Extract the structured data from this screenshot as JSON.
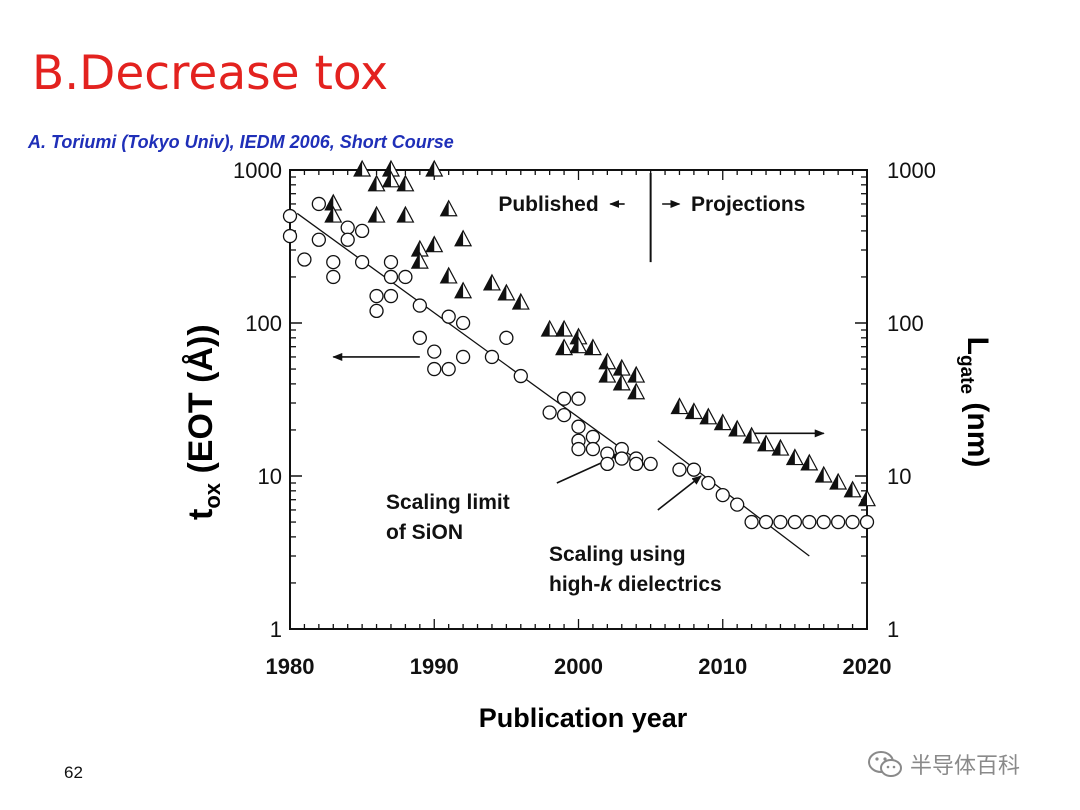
{
  "slide": {
    "title": "B.Decrease tox",
    "citation": "A. Toriumi (Tokyo Univ), IEDM 2006, Short Course",
    "page_number": "62",
    "watermark": "半导体百科",
    "watermark_icon": "wechat-icon"
  },
  "chart_data": {
    "type": "scatter",
    "xlabel": "Publication year",
    "ylabel_left": {
      "main": "t",
      "sub": "ox",
      "rest": " (EOT (Å))"
    },
    "ylabel_right": {
      "main": "L",
      "sub": "gate",
      "rest": " (nm)"
    },
    "xlim": [
      1980,
      2020
    ],
    "ylim": [
      1,
      1000
    ],
    "yscale": "log",
    "x_ticks": [
      "1980",
      "1990",
      "2000",
      "2010",
      "2020"
    ],
    "y_ticks_left": [
      "1000",
      "100",
      "10",
      "1"
    ],
    "y_ticks_right": [
      "1000",
      "100",
      "10",
      "1"
    ],
    "legend": "none",
    "grid": false,
    "divider_year": 2005,
    "annotations": {
      "published": "Published",
      "projections": "Projections",
      "sion_line1": "Scaling limit",
      "sion_line2": "of SiON",
      "highk_line1": "Scaling using",
      "highk_line2_pre": "high-",
      "highk_line2_k": "k",
      "highk_line2_post": " dielectrics"
    },
    "series": [
      {
        "marker": "circle",
        "axis": "left",
        "points": [
          [
            1980,
            500
          ],
          [
            1980,
            370
          ],
          [
            1981,
            260
          ],
          [
            1982,
            600
          ],
          [
            1982,
            350
          ],
          [
            1983,
            250
          ],
          [
            1983,
            200
          ],
          [
            1984,
            420
          ],
          [
            1984,
            350
          ],
          [
            1985,
            400
          ],
          [
            1985,
            250
          ],
          [
            1986,
            150
          ],
          [
            1986,
            120
          ],
          [
            1987,
            250
          ],
          [
            1987,
            200
          ],
          [
            1987,
            150
          ],
          [
            1988,
            200
          ],
          [
            1989,
            130
          ],
          [
            1989,
            80
          ],
          [
            1990,
            65
          ],
          [
            1990,
            50
          ],
          [
            1991,
            110
          ],
          [
            1991,
            50
          ],
          [
            1992,
            100
          ],
          [
            1992,
            60
          ],
          [
            1994,
            60
          ],
          [
            1995,
            80
          ],
          [
            1996,
            45
          ],
          [
            1998,
            26
          ],
          [
            1999,
            32
          ],
          [
            1999,
            25
          ],
          [
            2000,
            32
          ],
          [
            2000,
            21
          ],
          [
            2000,
            17
          ],
          [
            2000,
            15
          ],
          [
            2001,
            18
          ],
          [
            2001,
            15
          ],
          [
            2002,
            14
          ],
          [
            2002,
            12
          ],
          [
            2003,
            15
          ],
          [
            2003,
            13
          ],
          [
            2004,
            13
          ],
          [
            2004,
            12
          ],
          [
            2005,
            12
          ],
          [
            2007,
            11
          ],
          [
            2008,
            11
          ],
          [
            2009,
            9
          ],
          [
            2010,
            7.5
          ],
          [
            2011,
            6.5
          ],
          [
            2012,
            5
          ],
          [
            2013,
            5
          ],
          [
            2014,
            5
          ],
          [
            2015,
            5
          ],
          [
            2016,
            5
          ],
          [
            2017,
            5
          ],
          [
            2018,
            5
          ],
          [
            2019,
            5
          ],
          [
            2020,
            5
          ]
        ]
      },
      {
        "marker": "half-filled-triangle",
        "axis": "right",
        "points": [
          [
            1983,
            600
          ],
          [
            1983,
            500
          ],
          [
            1985,
            1000
          ],
          [
            1986,
            800
          ],
          [
            1986,
            500
          ],
          [
            1987,
            1000
          ],
          [
            1987,
            850
          ],
          [
            1988,
            800
          ],
          [
            1988,
            500
          ],
          [
            1990,
            1000
          ],
          [
            1989,
            300
          ],
          [
            1989,
            250
          ],
          [
            1990,
            320
          ],
          [
            1991,
            550
          ],
          [
            1991,
            200
          ],
          [
            1992,
            350
          ],
          [
            1992,
            160
          ],
          [
            1994,
            180
          ],
          [
            1995,
            155
          ],
          [
            1996,
            135
          ],
          [
            1998,
            90
          ],
          [
            1999,
            90
          ],
          [
            1999,
            68
          ],
          [
            2000,
            80
          ],
          [
            2000,
            70
          ],
          [
            2001,
            68
          ],
          [
            2002,
            55
          ],
          [
            2002,
            45
          ],
          [
            2003,
            50
          ],
          [
            2003,
            40
          ],
          [
            2004,
            45
          ],
          [
            2004,
            35
          ],
          [
            2007,
            28
          ],
          [
            2008,
            26
          ],
          [
            2009,
            24
          ],
          [
            2010,
            22
          ],
          [
            2011,
            20
          ],
          [
            2012,
            18
          ],
          [
            2013,
            16
          ],
          [
            2014,
            15
          ],
          [
            2015,
            13
          ],
          [
            2016,
            12
          ],
          [
            2017,
            10
          ],
          [
            2018,
            9
          ],
          [
            2019,
            8
          ],
          [
            2020,
            7
          ]
        ]
      }
    ],
    "trend_lines": [
      {
        "name": "sion",
        "from": [
          1980.5,
          520
        ],
        "to": [
          2005,
          11
        ]
      },
      {
        "name": "highk",
        "from": [
          2005.5,
          17
        ],
        "to": [
          2016,
          3
        ]
      }
    ],
    "arrows": [
      {
        "name": "left-axis-arrow",
        "from": [
          1989,
          60
        ],
        "to": [
          1983,
          60
        ]
      },
      {
        "name": "right-axis-arrow",
        "from": [
          2012,
          19
        ],
        "to": [
          2017,
          19
        ]
      },
      {
        "name": "sion-annotation-arrow",
        "from": [
          1998.5,
          9
        ],
        "to": [
          2003,
          14
        ]
      },
      {
        "name": "highk-annotation-arrow",
        "from": [
          2005.5,
          6
        ],
        "to": [
          2008.5,
          10
        ]
      }
    ]
  }
}
